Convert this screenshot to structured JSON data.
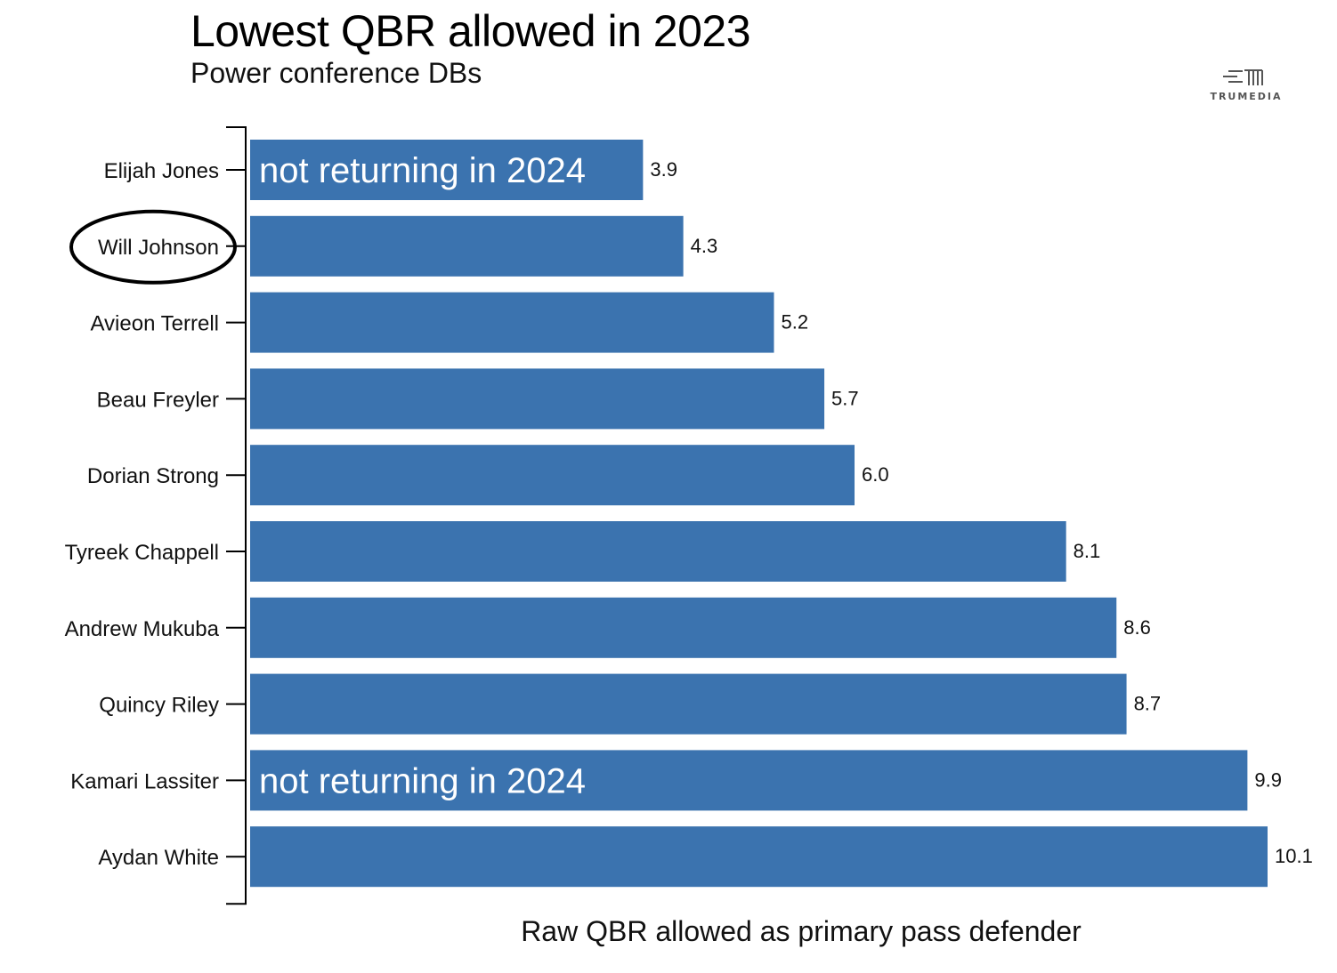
{
  "chart_data": {
    "type": "bar",
    "orientation": "horizontal",
    "title": "Lowest QBR allowed in 2023",
    "subtitle": "Power conference DBs",
    "xlabel": "Raw QBR allowed as primary pass defender",
    "ylabel": "",
    "xlim": [
      0,
      10.1
    ],
    "grid": false,
    "categories": [
      "Elijah Jones",
      "Will Johnson",
      "Avieon Terrell",
      "Beau Freyler",
      "Dorian Strong",
      "Tyreek Chappell",
      "Andrew Mukuba",
      "Quincy Riley",
      "Kamari Lassiter",
      "Aydan White"
    ],
    "values": [
      3.9,
      4.3,
      5.2,
      5.7,
      6.0,
      8.1,
      8.6,
      8.7,
      9.9,
      10.1
    ],
    "value_labels": [
      "3.9",
      "4.3",
      "5.2",
      "5.7",
      "6.0",
      "8.1",
      "8.6",
      "8.7",
      "9.9",
      "10.1"
    ],
    "bar_color": "#3b73af",
    "highlighted_category": "Will Johnson",
    "annotations": [
      {
        "category": "Elijah Jones",
        "text": "not returning in 2024"
      },
      {
        "category": "Kamari Lassiter",
        "text": "not returning in 2024"
      }
    ]
  },
  "logo": {
    "text": "TRUMEDIA"
  }
}
